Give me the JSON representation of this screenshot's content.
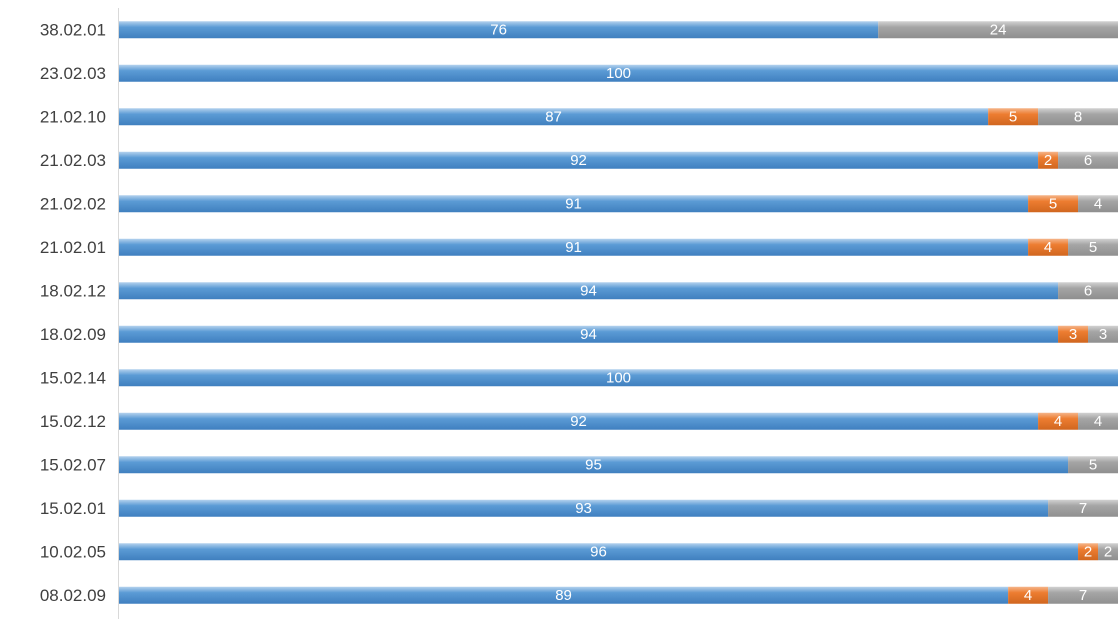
{
  "chart_data": {
    "type": "bar",
    "orientation": "horizontal",
    "stacked": true,
    "categories": [
      "08.02.09",
      "10.02.05",
      "15.02.01",
      "15.02.07",
      "15.02.12",
      "15.02.14",
      "18.02.09",
      "18.02.12",
      "21.02.01",
      "21.02.02",
      "21.02.03",
      "21.02.10",
      "23.02.03",
      "38.02.01"
    ],
    "series": [
      {
        "values": [
          89,
          96,
          93,
          95,
          92,
          100,
          94,
          94,
          91,
          91,
          92,
          87,
          100,
          76
        ],
        "color": "#5b9bd5"
      },
      {
        "values": [
          4,
          2,
          0,
          0,
          4,
          0,
          3,
          0,
          4,
          5,
          2,
          5,
          0,
          0
        ],
        "color": "#ed7d31"
      },
      {
        "values": [
          7,
          2,
          7,
          5,
          4,
          0,
          3,
          6,
          5,
          4,
          6,
          8,
          0,
          24
        ],
        "color": "#a5a5a5"
      }
    ],
    "xlim": [
      0,
      100
    ],
    "grid": false,
    "legend": "none",
    "data_labels": true
  }
}
